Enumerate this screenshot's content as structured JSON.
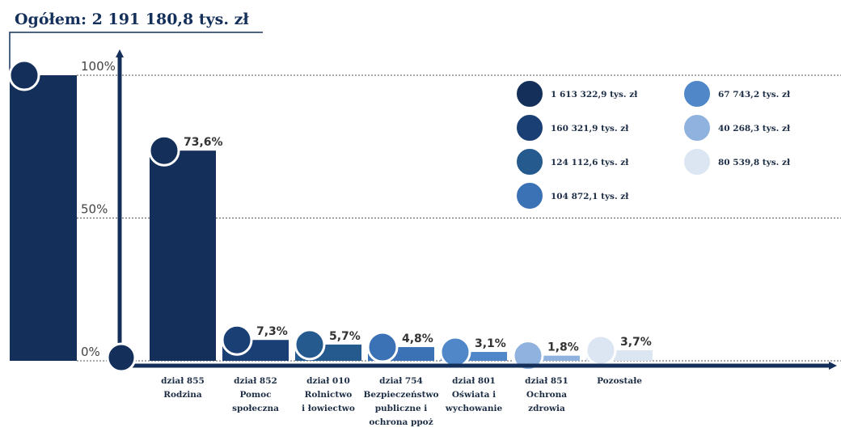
{
  "chart_data": {
    "type": "bar",
    "title": "Ogółem: 2 191 180,8 tys. zł",
    "total_value": 100,
    "total_color": "#14305a",
    "categories": [
      [
        "dział 855",
        "Rodzina"
      ],
      [
        "dział 852",
        "Pomoc",
        "społeczna"
      ],
      [
        "dział 010",
        "Rolnictwo",
        "i łowiectwo"
      ],
      [
        "dział 754",
        "Bezpieczeństwo",
        "publiczne i",
        "ochrona ppoż"
      ],
      [
        "dział 801",
        "Oświata i",
        "wychowanie"
      ],
      [
        "dział 851",
        "Ochrona",
        "zdrowia"
      ],
      [
        "Pozostałe"
      ]
    ],
    "values": [
      73.6,
      7.3,
      5.7,
      4.8,
      3.1,
      1.8,
      3.7
    ],
    "value_labels": [
      "73,6%",
      "7,3%",
      "5,7%",
      "4,8%",
      "3,1%",
      "1,8%",
      "3,7%"
    ],
    "colors": [
      "#14305a",
      "#1a3f75",
      "#245a8e",
      "#3a72b5",
      "#4f87c8",
      "#8fb2de",
      "#dce6f2"
    ],
    "amount_labels": [
      "1 613 322,9 tys. zł",
      "160 321,9 tys. zł",
      "124 112,6 tys. zł",
      "104 872,1 tys. zł",
      "67 743,2 tys. zł",
      "40 268,3 tys. zł",
      "80 539,8 tys. zł"
    ],
    "ylim": [
      0,
      100
    ],
    "yticks": [
      {
        "value": 0,
        "label": "0%"
      },
      {
        "value": 50,
        "label": "50%"
      },
      {
        "value": 100,
        "label": "100%"
      }
    ],
    "grid": true
  }
}
